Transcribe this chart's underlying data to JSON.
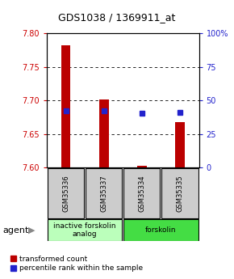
{
  "title": "GDS1038 / 1369911_at",
  "samples": [
    "GSM35336",
    "GSM35337",
    "GSM35334",
    "GSM35335"
  ],
  "bar_bottoms": [
    7.6,
    7.6,
    7.6,
    7.6
  ],
  "bar_tops": [
    7.782,
    7.702,
    7.603,
    7.668
  ],
  "blue_y": [
    7.685,
    7.685,
    7.681,
    7.682
  ],
  "ylim_left": [
    7.6,
    7.8
  ],
  "ylim_right": [
    0,
    100
  ],
  "yticks_left": [
    7.6,
    7.65,
    7.7,
    7.75,
    7.8
  ],
  "yticks_right": [
    0,
    25,
    50,
    75,
    100
  ],
  "yticklabels_right": [
    "0",
    "25",
    "50",
    "75",
    "100%"
  ],
  "groups": [
    {
      "label": "inactive forskolin\nanalog",
      "color": "#bbffbb",
      "spans": [
        0,
        2
      ]
    },
    {
      "label": "forskolin",
      "color": "#44dd44",
      "spans": [
        2,
        4
      ]
    }
  ],
  "bar_color": "#bb0000",
  "blue_color": "#2222cc",
  "bar_width": 0.25,
  "sample_box_color": "#cccccc",
  "legend_red_label": "transformed count",
  "legend_blue_label": "percentile rank within the sample",
  "agent_label": "agent"
}
